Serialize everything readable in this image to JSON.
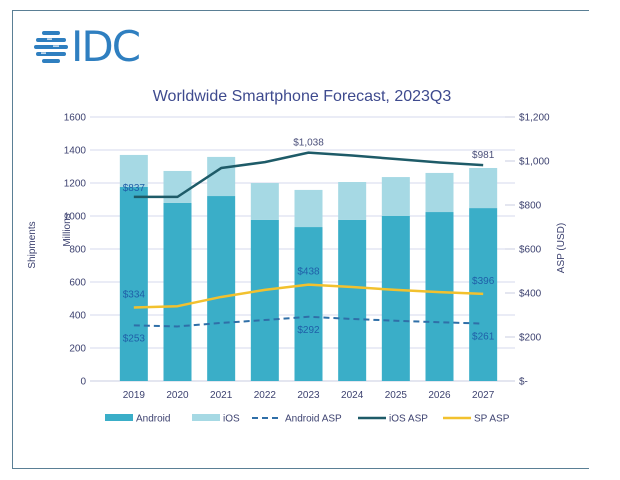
{
  "brand": {
    "logo_text": "IDC",
    "logo_color": "#2f7fc0"
  },
  "chart_data": {
    "type": "bar",
    "title": "Worldwide Smartphone Forecast, 2023Q3",
    "categories": [
      "2019",
      "2020",
      "2021",
      "2022",
      "2023",
      "2024",
      "2025",
      "2026",
      "2027"
    ],
    "stacked": true,
    "series": [
      {
        "name": "Android",
        "kind": "bar",
        "axis": "left",
        "color": "#3aaec8",
        "values": [
          1176,
          1079,
          1121,
          976,
          933,
          976,
          1000,
          1024,
          1048
        ]
      },
      {
        "name": "iOS",
        "kind": "bar",
        "axis": "left",
        "color": "#a6d9e4",
        "values": [
          194,
          194,
          237,
          224,
          225,
          230,
          236,
          237,
          243
        ]
      },
      {
        "name": "Android ASP",
        "kind": "line",
        "style": "dashed",
        "axis": "right",
        "color": "#2f6fa8",
        "values": [
          253,
          248,
          264,
          277,
          292,
          282,
          274,
          267,
          261
        ]
      },
      {
        "name": "iOS ASP",
        "kind": "line",
        "style": "solid",
        "axis": "right",
        "color": "#1e5b68",
        "values": [
          837,
          837,
          968,
          995,
          1038,
          1025,
          1009,
          993,
          981
        ]
      },
      {
        "name": "SP ASP",
        "kind": "line",
        "style": "solid",
        "axis": "right",
        "color": "#f2c12e",
        "values": [
          334,
          340,
          382,
          414,
          438,
          427,
          414,
          404,
          396
        ]
      }
    ],
    "data_labels": [
      {
        "series": "iOS ASP",
        "index": 0,
        "text": "$837",
        "tone": "blue"
      },
      {
        "series": "iOS ASP",
        "index": 4,
        "text": "$1,038",
        "tone": "gray"
      },
      {
        "series": "iOS ASP",
        "index": 8,
        "text": "$981",
        "tone": "gray"
      },
      {
        "series": "SP ASP",
        "index": 0,
        "text": "$334",
        "tone": "blue"
      },
      {
        "series": "SP ASP",
        "index": 4,
        "text": "$438",
        "tone": "blue"
      },
      {
        "series": "SP ASP",
        "index": 8,
        "text": "$396",
        "tone": "blue"
      },
      {
        "series": "Android ASP",
        "index": 0,
        "text": "$253",
        "tone": "blue"
      },
      {
        "series": "Android ASP",
        "index": 4,
        "text": "$292",
        "tone": "blue"
      },
      {
        "series": "Android ASP",
        "index": 8,
        "text": "$261",
        "tone": "blue"
      }
    ],
    "ylabel": [
      "Shipments",
      "Millions"
    ],
    "ylim": [
      0,
      1600
    ],
    "yticks": [
      0,
      200,
      400,
      600,
      800,
      1000,
      1200,
      1400,
      1600
    ],
    "ytick_labels": [
      "0",
      "200",
      "400",
      "600",
      "800",
      "1000",
      "1200",
      "1400",
      "1600"
    ],
    "y2label": "ASP (USD)",
    "y2lim": [
      0,
      1200
    ],
    "y2ticks": [
      0,
      200,
      400,
      600,
      800,
      1000,
      1200
    ],
    "y2tick_labels": [
      "$-",
      "$200",
      "$400",
      "$600",
      "$800",
      "$1,000",
      "$1,200"
    ],
    "grid": true,
    "legend": {
      "placement": "bottom",
      "entries": [
        {
          "label": "Android",
          "type": "box",
          "color": "#3aaec8"
        },
        {
          "label": "iOS",
          "type": "box",
          "color": "#a6d9e4"
        },
        {
          "label": "Android ASP",
          "type": "dash",
          "color": "#2f6fa8"
        },
        {
          "label": "iOS ASP",
          "type": "line",
          "color": "#1e5b68"
        },
        {
          "label": "SP ASP",
          "type": "line",
          "color": "#f2c12e"
        }
      ]
    }
  }
}
